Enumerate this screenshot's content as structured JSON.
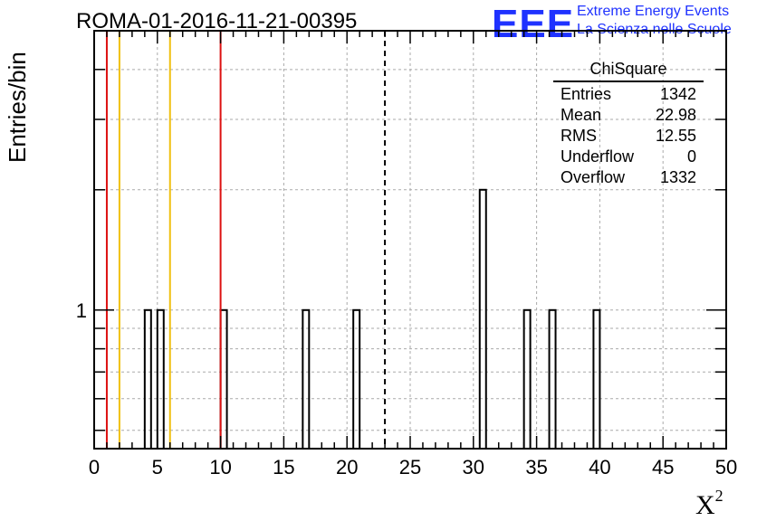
{
  "header": {
    "title": "ROMA-01-2016-11-21-00395",
    "logo": "EEE",
    "logo_line1": "Extreme Energy Events",
    "logo_line2": "La Scienza nelle Scuole"
  },
  "axes": {
    "ylabel": "Entries/bin",
    "xlabel_base": "X",
    "xlabel_sup": "2"
  },
  "stats": {
    "title": "ChiSquare",
    "rows": [
      {
        "label": "Entries",
        "value": "1342"
      },
      {
        "label": "Mean",
        "value": "22.98"
      },
      {
        "label": "RMS",
        "value": "12.55"
      },
      {
        "label": "Underflow",
        "value": "0"
      },
      {
        "label": "Overflow",
        "value": "1332"
      }
    ]
  },
  "colors": {
    "red_line": "#dd1111",
    "yellow_line": "#f0c010",
    "grid": "#aaaaaa",
    "logo_blue": "#1f32ff"
  },
  "chart_data": {
    "type": "bar",
    "title": "ROMA-01-2016-11-21-00395",
    "xlabel": "X^2",
    "ylabel": "Entries/bin",
    "xlim": [
      0,
      50
    ],
    "ylog": true,
    "ylim": [
      0.45,
      5
    ],
    "xticks": [
      0,
      5,
      10,
      15,
      20,
      25,
      30,
      35,
      40,
      45,
      50
    ],
    "yticks": [
      1
    ],
    "bin_width": 0.5,
    "bins": [
      {
        "x": 4,
        "count": 1
      },
      {
        "x": 5,
        "count": 1
      },
      {
        "x": 10,
        "count": 1
      },
      {
        "x": 16.5,
        "count": 1
      },
      {
        "x": 20.5,
        "count": 1
      },
      {
        "x": 30.5,
        "count": 2
      },
      {
        "x": 34,
        "count": 1
      },
      {
        "x": 36,
        "count": 1
      },
      {
        "x": 39.5,
        "count": 1
      }
    ],
    "vlines_red": [
      1,
      10
    ],
    "vlines_yellow": [
      2,
      6
    ],
    "vline_dashed": 23,
    "grid": true
  }
}
